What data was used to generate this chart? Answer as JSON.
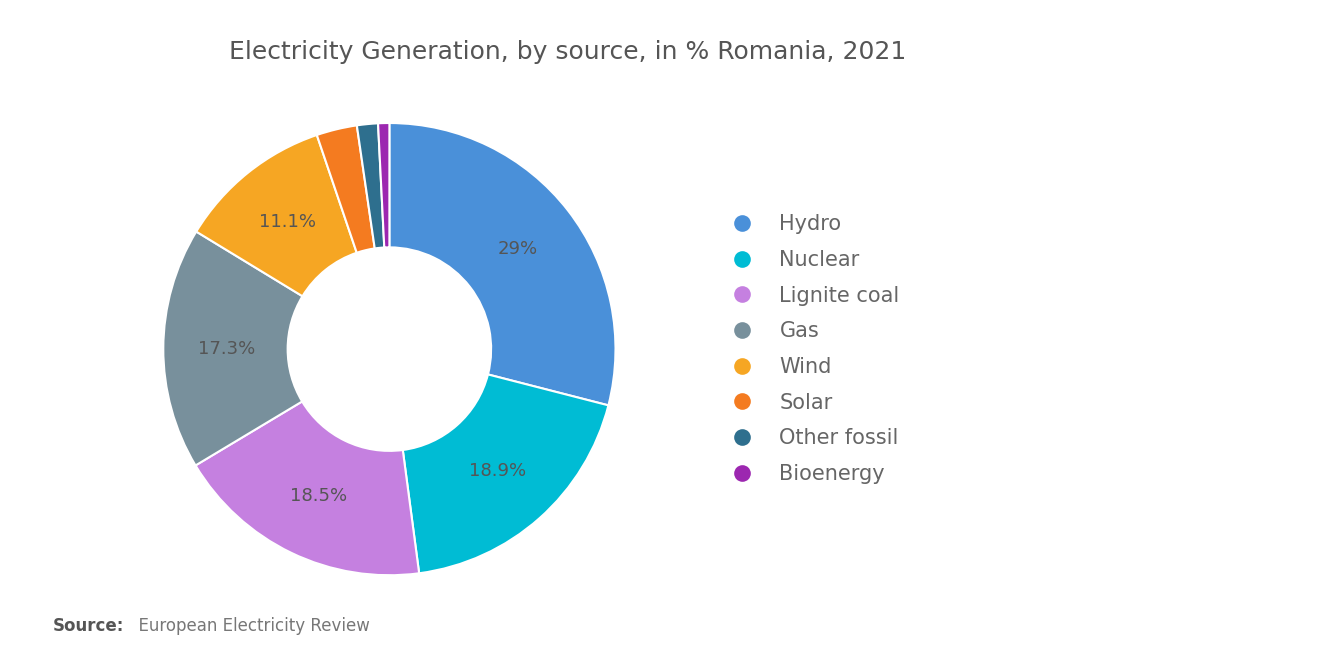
{
  "title": "Electricity Generation, by source, in % Romania, 2021",
  "labels": [
    "Hydro",
    "Nuclear",
    "Lignite coal",
    "Gas",
    "Wind",
    "Solar",
    "Other fossil",
    "Bioenergy"
  ],
  "values": [
    29.0,
    18.9,
    18.5,
    17.3,
    11.1,
    2.9,
    1.5,
    0.8
  ],
  "colors": [
    "#4A90D9",
    "#00BCD4",
    "#C580E0",
    "#78909C",
    "#F6A623",
    "#F47B20",
    "#2E6F8E",
    "#9C27B0"
  ],
  "label_display": [
    "29%",
    "18.9%",
    "18.5%",
    "17.3%",
    "11.1%",
    "",
    "",
    ""
  ],
  "source_bold": "Source:",
  "source_rest": "  European Electricity Review",
  "background_color": "#ffffff",
  "title_fontsize": 18,
  "legend_fontsize": 15,
  "label_fontsize": 13,
  "source_fontsize": 12
}
